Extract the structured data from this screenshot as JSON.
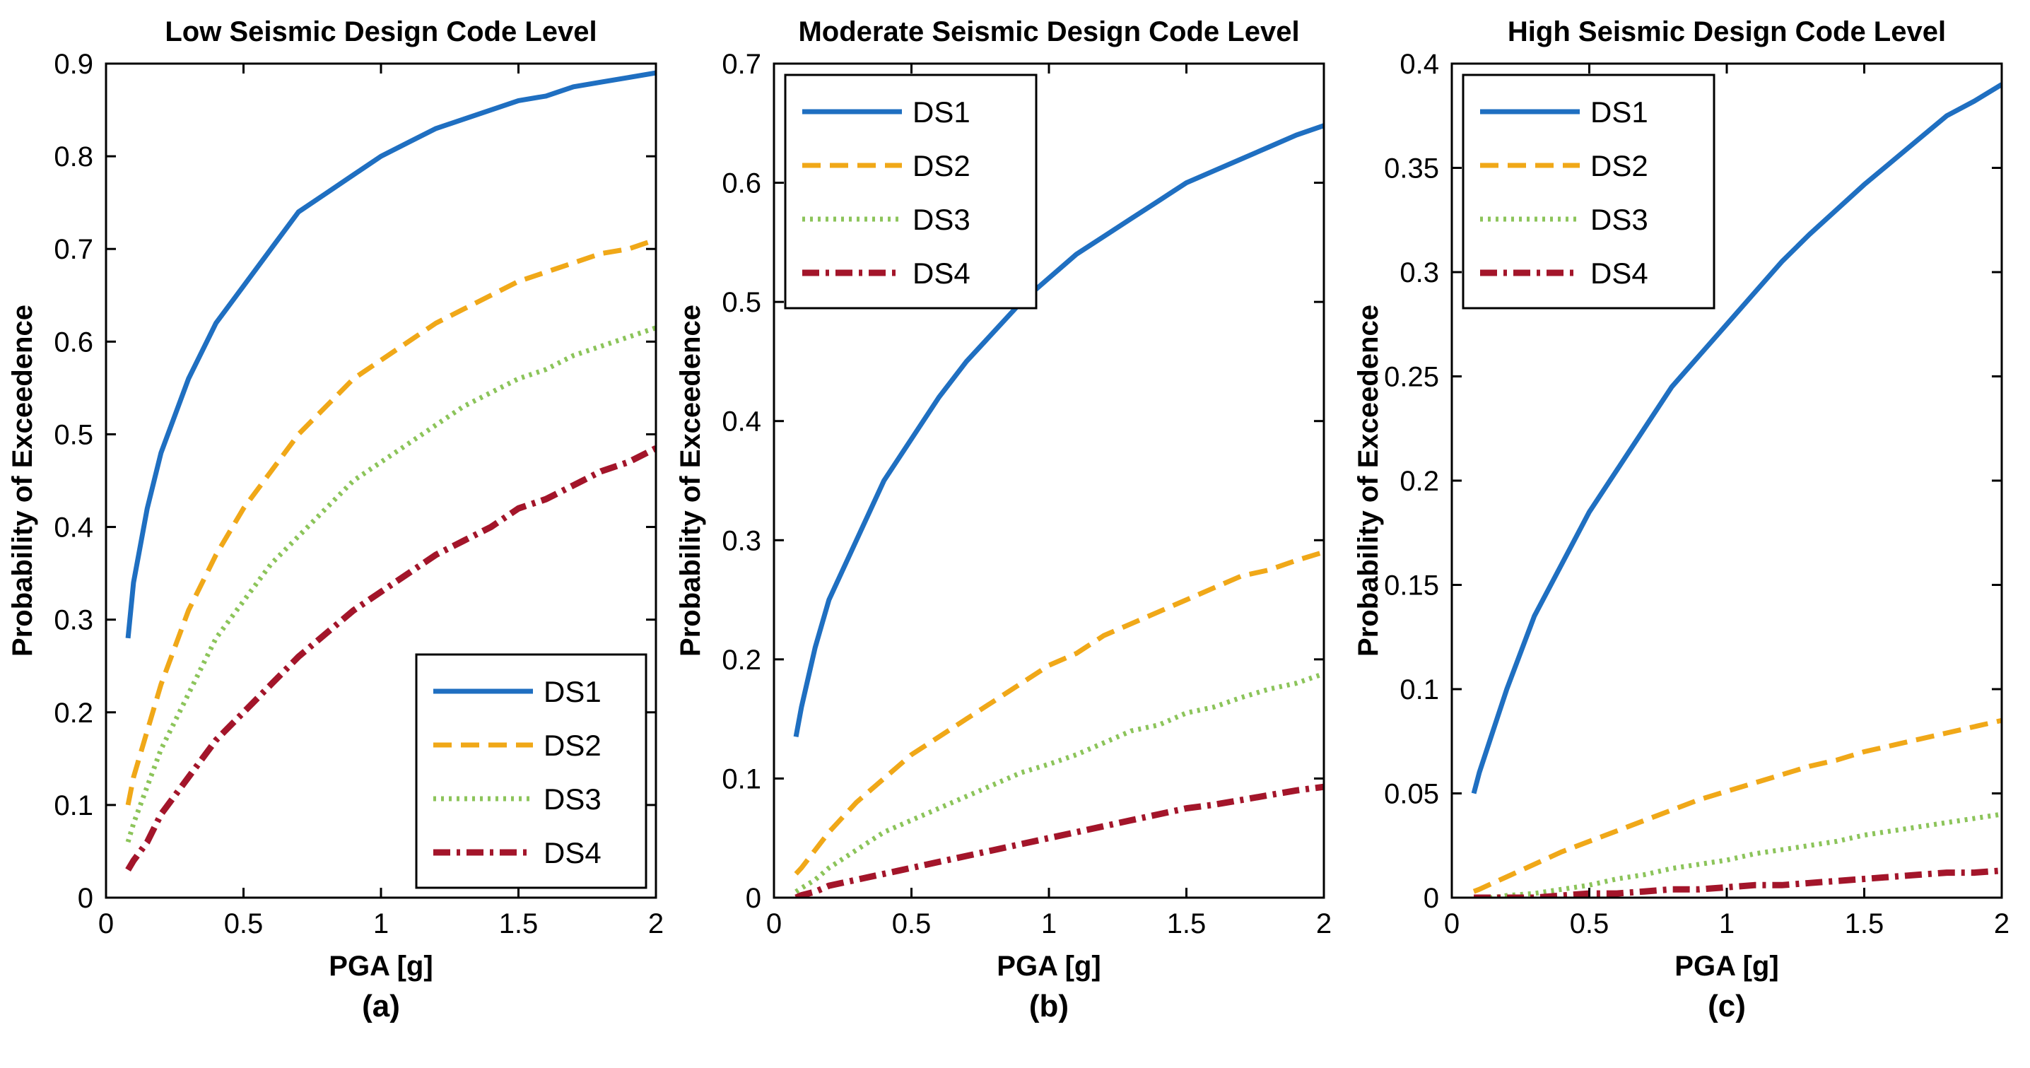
{
  "chart_data": [
    {
      "type": "line",
      "title": "Low Seismic Design Code Level",
      "caption": "(a)",
      "xlabel": "PGA [g]",
      "ylabel": "Probability of Exceedence",
      "xlim": [
        0,
        2
      ],
      "ylim": [
        0,
        0.9
      ],
      "xticks": [
        0,
        0.5,
        1,
        1.5,
        2
      ],
      "xtick_labels": [
        "0",
        "0.5",
        "1",
        "1.5",
        "2"
      ],
      "yticks": [
        0,
        0.1,
        0.2,
        0.3,
        0.4,
        0.5,
        0.6,
        0.7,
        0.8,
        0.9
      ],
      "ytick_labels": [
        "0",
        "0.1",
        "0.2",
        "0.3",
        "0.4",
        "0.5",
        "0.6",
        "0.7",
        "0.8",
        "0.9"
      ],
      "grid": false,
      "legend_position": "bottom-right",
      "x": [
        0.08,
        0.1,
        0.15,
        0.2,
        0.3,
        0.4,
        0.5,
        0.6,
        0.7,
        0.8,
        0.9,
        1.0,
        1.1,
        1.2,
        1.3,
        1.4,
        1.5,
        1.6,
        1.7,
        1.8,
        1.9,
        2.0
      ],
      "series": [
        {
          "name": "DS1",
          "values": [
            0.28,
            0.34,
            0.42,
            0.48,
            0.56,
            0.62,
            0.66,
            0.7,
            0.74,
            0.76,
            0.78,
            0.8,
            0.815,
            0.83,
            0.84,
            0.85,
            0.86,
            0.865,
            0.875,
            0.88,
            0.885,
            0.89
          ]
        },
        {
          "name": "DS2",
          "values": [
            0.1,
            0.13,
            0.18,
            0.23,
            0.31,
            0.37,
            0.42,
            0.46,
            0.5,
            0.53,
            0.56,
            0.58,
            0.6,
            0.62,
            0.635,
            0.65,
            0.665,
            0.675,
            0.685,
            0.695,
            0.7,
            0.71
          ]
        },
        {
          "name": "DS3",
          "values": [
            0.06,
            0.08,
            0.12,
            0.16,
            0.22,
            0.28,
            0.32,
            0.36,
            0.39,
            0.42,
            0.45,
            0.47,
            0.49,
            0.51,
            0.53,
            0.545,
            0.56,
            0.57,
            0.585,
            0.595,
            0.605,
            0.615
          ]
        },
        {
          "name": "DS4",
          "values": [
            0.03,
            0.04,
            0.06,
            0.09,
            0.13,
            0.17,
            0.2,
            0.23,
            0.26,
            0.285,
            0.31,
            0.33,
            0.35,
            0.37,
            0.385,
            0.4,
            0.42,
            0.43,
            0.445,
            0.46,
            0.47,
            0.485
          ]
        }
      ]
    },
    {
      "type": "line",
      "title": "Moderate Seismic Design Code Level",
      "caption": "(b)",
      "xlabel": "PGA [g]",
      "ylabel": "Probability of Exceedence",
      "xlim": [
        0,
        2
      ],
      "ylim": [
        0,
        0.7
      ],
      "xticks": [
        0,
        0.5,
        1,
        1.5,
        2
      ],
      "xtick_labels": [
        "0",
        "0.5",
        "1",
        "1.5",
        "2"
      ],
      "yticks": [
        0,
        0.1,
        0.2,
        0.3,
        0.4,
        0.5,
        0.6,
        0.7
      ],
      "ytick_labels": [
        "0",
        "0.1",
        "0.2",
        "0.3",
        "0.4",
        "0.5",
        "0.6",
        "0.7"
      ],
      "grid": false,
      "legend_position": "top-left",
      "x": [
        0.08,
        0.1,
        0.15,
        0.2,
        0.3,
        0.4,
        0.5,
        0.6,
        0.7,
        0.8,
        0.9,
        1.0,
        1.1,
        1.2,
        1.3,
        1.4,
        1.5,
        1.6,
        1.7,
        1.8,
        1.9,
        2.0
      ],
      "series": [
        {
          "name": "DS1",
          "values": [
            0.135,
            0.16,
            0.21,
            0.25,
            0.3,
            0.35,
            0.385,
            0.42,
            0.45,
            0.475,
            0.5,
            0.52,
            0.54,
            0.555,
            0.57,
            0.585,
            0.6,
            0.61,
            0.62,
            0.63,
            0.64,
            0.648
          ]
        },
        {
          "name": "DS2",
          "values": [
            0.02,
            0.025,
            0.04,
            0.055,
            0.08,
            0.1,
            0.12,
            0.135,
            0.15,
            0.165,
            0.18,
            0.195,
            0.205,
            0.22,
            0.23,
            0.24,
            0.25,
            0.26,
            0.27,
            0.275,
            0.283,
            0.29
          ]
        },
        {
          "name": "DS3",
          "values": [
            0.005,
            0.008,
            0.015,
            0.025,
            0.04,
            0.055,
            0.065,
            0.075,
            0.085,
            0.095,
            0.105,
            0.112,
            0.12,
            0.13,
            0.14,
            0.145,
            0.155,
            0.16,
            0.168,
            0.175,
            0.18,
            0.188
          ]
        },
        {
          "name": "DS4",
          "values": [
            0.0,
            0.002,
            0.005,
            0.01,
            0.015,
            0.02,
            0.025,
            0.03,
            0.035,
            0.04,
            0.045,
            0.05,
            0.055,
            0.06,
            0.065,
            0.07,
            0.075,
            0.078,
            0.082,
            0.086,
            0.09,
            0.093
          ]
        }
      ]
    },
    {
      "type": "line",
      "title": "High Seismic Design Code Level",
      "caption": "(c)",
      "xlabel": "PGA [g]",
      "ylabel": "Probability of Exceedence",
      "xlim": [
        0,
        2
      ],
      "ylim": [
        0,
        0.4
      ],
      "xticks": [
        0,
        0.5,
        1,
        1.5,
        2
      ],
      "xtick_labels": [
        "0",
        "0.5",
        "1",
        "1.5",
        "2"
      ],
      "yticks": [
        0,
        0.05,
        0.1,
        0.15,
        0.2,
        0.25,
        0.3,
        0.35,
        0.4
      ],
      "ytick_labels": [
        "0",
        "0.05",
        "0.1",
        "0.15",
        "0.2",
        "0.25",
        "0.3",
        "0.35",
        "0.4"
      ],
      "grid": false,
      "legend_position": "top-left",
      "x": [
        0.08,
        0.1,
        0.15,
        0.2,
        0.3,
        0.4,
        0.5,
        0.6,
        0.7,
        0.8,
        0.9,
        1.0,
        1.1,
        1.2,
        1.3,
        1.4,
        1.5,
        1.6,
        1.7,
        1.8,
        1.9,
        2.0
      ],
      "series": [
        {
          "name": "DS1",
          "values": [
            0.05,
            0.06,
            0.08,
            0.1,
            0.135,
            0.16,
            0.185,
            0.205,
            0.225,
            0.245,
            0.26,
            0.275,
            0.29,
            0.305,
            0.318,
            0.33,
            0.342,
            0.353,
            0.364,
            0.375,
            0.382,
            0.39
          ]
        },
        {
          "name": "DS2",
          "values": [
            0.003,
            0.004,
            0.007,
            0.01,
            0.016,
            0.022,
            0.027,
            0.032,
            0.037,
            0.042,
            0.047,
            0.051,
            0.055,
            0.059,
            0.063,
            0.066,
            0.07,
            0.073,
            0.076,
            0.079,
            0.082,
            0.085
          ]
        },
        {
          "name": "DS3",
          "values": [
            0.0,
            0.0,
            0.0,
            0.001,
            0.002,
            0.004,
            0.006,
            0.009,
            0.011,
            0.014,
            0.016,
            0.018,
            0.021,
            0.023,
            0.025,
            0.027,
            0.03,
            0.032,
            0.034,
            0.036,
            0.038,
            0.04
          ]
        },
        {
          "name": "DS4",
          "values": [
            0.0,
            0.0,
            0.0,
            0.0,
            0.0,
            0.001,
            0.002,
            0.002,
            0.003,
            0.004,
            0.004,
            0.005,
            0.006,
            0.006,
            0.007,
            0.008,
            0.009,
            0.01,
            0.011,
            0.012,
            0.012,
            0.013
          ]
        }
      ]
    }
  ],
  "styles": {
    "DS1": {
      "color": "#1f6fc1",
      "dash": "none",
      "width": 7
    },
    "DS2": {
      "color": "#f0a818",
      "dash": "26 13",
      "width": 7
    },
    "DS3": {
      "color": "#8cc45a",
      "dash": "4 7",
      "width": 7
    },
    "DS4": {
      "color": "#a3152a",
      "dash": "24 9 5 9",
      "width": 9
    }
  }
}
